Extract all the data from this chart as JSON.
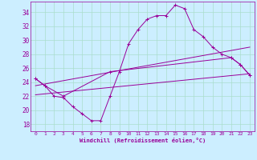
{
  "xlabel": "Windchill (Refroidissement éolien,°C)",
  "bg_color": "#cceeff",
  "grid_color": "#aaddcc",
  "line_color": "#990099",
  "spine_color": "#664466",
  "xlim": [
    -0.5,
    23.5
  ],
  "ylim": [
    17.0,
    35.5
  ],
  "yticks": [
    18,
    20,
    22,
    24,
    26,
    28,
    30,
    32,
    34
  ],
  "xticks": [
    0,
    1,
    2,
    3,
    4,
    5,
    6,
    7,
    8,
    9,
    10,
    11,
    12,
    13,
    14,
    15,
    16,
    17,
    18,
    19,
    20,
    21,
    22,
    23
  ],
  "line1_x": [
    0,
    1,
    2,
    3,
    4,
    5,
    6,
    7,
    8,
    9,
    10,
    11,
    12,
    13,
    14,
    15,
    16,
    17,
    18,
    19,
    20,
    21,
    22,
    23
  ],
  "line1_y": [
    24.5,
    23.5,
    22.0,
    21.8,
    20.5,
    19.5,
    18.5,
    18.5,
    22.0,
    25.5,
    29.5,
    31.5,
    33.0,
    33.5,
    33.5,
    35.0,
    34.5,
    31.5,
    30.5,
    29.0,
    28.0,
    27.5,
    26.5,
    25.0
  ],
  "line2_x": [
    0,
    1,
    3,
    8,
    21,
    22,
    23
  ],
  "line2_y": [
    24.5,
    23.5,
    22.0,
    25.5,
    27.5,
    26.5,
    25.0
  ],
  "line3_x": [
    0,
    23
  ],
  "line3_y": [
    22.2,
    25.2
  ],
  "line4_x": [
    0,
    23
  ],
  "line4_y": [
    23.5,
    29.0
  ]
}
